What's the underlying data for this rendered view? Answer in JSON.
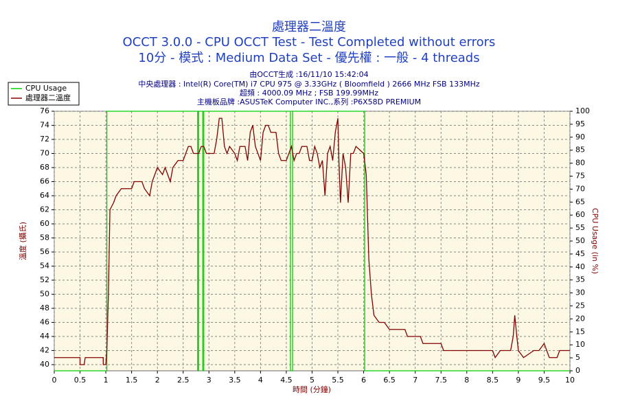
{
  "chart_data": {
    "type": "line",
    "title": "處理器二溫度",
    "subtitle": [
      "OCCT 3.0.0 - CPU OCCT Test - Test Completed without errors",
      "10分 - 模式 : Medium Data Set - 優先權 : 一般 - 4 threads"
    ],
    "notes": [
      "由OCCT生成 :16/11/10 15:42:04",
      "中央處理器 : Intel(R) Core(TM) i7 CPU 975 @ 3.33GHz ( Bloomfield ) 2666 MHz FSB 133MHz",
      "超頻 : 4000.09 MHz ; FSB 199.99MHz",
      "主機板品牌 :ASUSTeK Computer INC.,系列 :P6X58D PREMIUM"
    ],
    "xlabel": "時間 (分鐘)",
    "ylabel": "溫度 (攝氏)",
    "y2label": "CPU Usage (in %)",
    "xlim": [
      0,
      10
    ],
    "xticks": [
      0,
      0.5,
      1,
      1.5,
      2,
      2.5,
      3,
      3.5,
      4,
      4.5,
      5,
      5.5,
      6,
      6.5,
      7,
      7.5,
      8,
      8.5,
      9,
      9.5,
      10
    ],
    "ylim": [
      39.12,
      76
    ],
    "yticks": [
      40,
      42,
      44,
      46,
      48,
      50,
      52,
      54,
      56,
      58,
      60,
      62,
      64,
      66,
      68,
      70,
      72,
      74,
      76
    ],
    "y2lim": [
      0,
      100
    ],
    "y2ticks": [
      0,
      5,
      10,
      15,
      20,
      25,
      30,
      35,
      40,
      45,
      50,
      55,
      60,
      65,
      70,
      75,
      80,
      85,
      90,
      95,
      100
    ],
    "grid": true,
    "legend": "top-left",
    "series": [
      {
        "name": "CPU Usage",
        "color": "#00d000",
        "axis": "y2",
        "x": [
          0,
          1.02,
          1.02,
          2.78,
          2.78,
          2.8,
          2.8,
          2.88,
          2.88,
          2.9,
          2.9,
          4.58,
          4.58,
          4.62,
          4.62,
          6.02,
          6.02,
          10
        ],
        "values": [
          0,
          0,
          100,
          100,
          0,
          0,
          100,
          100,
          0,
          0,
          100,
          100,
          0,
          0,
          100,
          100,
          0,
          0
        ]
      },
      {
        "name": "處理器二溫度",
        "color": "#800000",
        "x": [
          0,
          0.5,
          0.5,
          0.58,
          0.6,
          0.95,
          0.95,
          1.0,
          1.02,
          1.05,
          1.08,
          1.15,
          1.2,
          1.3,
          1.5,
          1.55,
          1.7,
          1.75,
          1.85,
          1.9,
          1.95,
          2.0,
          2.1,
          2.15,
          2.2,
          2.25,
          2.3,
          2.4,
          2.5,
          2.55,
          2.6,
          2.65,
          2.7,
          2.8,
          2.85,
          2.9,
          2.95,
          3.1,
          3.15,
          3.2,
          3.25,
          3.3,
          3.35,
          3.4,
          3.5,
          3.55,
          3.6,
          3.7,
          3.75,
          3.8,
          3.85,
          3.9,
          4.0,
          4.05,
          4.1,
          4.15,
          4.2,
          4.3,
          4.35,
          4.4,
          4.5,
          4.55,
          4.6,
          4.65,
          4.7,
          4.75,
          4.8,
          4.9,
          4.95,
          5.0,
          5.05,
          5.1,
          5.15,
          5.2,
          5.25,
          5.3,
          5.35,
          5.4,
          5.45,
          5.5,
          5.52,
          5.55,
          5.6,
          5.65,
          5.7,
          5.75,
          5.8,
          5.85,
          6.0,
          6.05,
          6.1,
          6.15,
          6.2,
          6.3,
          6.4,
          6.5,
          6.8,
          6.85,
          7.1,
          7.15,
          7.5,
          7.55,
          8.5,
          8.55,
          8.65,
          8.85,
          8.9,
          8.93,
          8.97,
          9.0,
          9.1,
          9.3,
          9.4,
          9.5,
          9.55,
          9.6,
          9.75,
          9.8,
          10
        ],
        "values": [
          41,
          41,
          40,
          40,
          41,
          41,
          40,
          40,
          42,
          50,
          62,
          63,
          64,
          65,
          65,
          66,
          66,
          65,
          64,
          66,
          67,
          68,
          67,
          68,
          67,
          66,
          68,
          69,
          69,
          70,
          71,
          71,
          70,
          70,
          71,
          71,
          70,
          70,
          72,
          75,
          75,
          71,
          70,
          71,
          70,
          69,
          71,
          71,
          69,
          73,
          74,
          71,
          69,
          73,
          74,
          74,
          73,
          73,
          70,
          69,
          69,
          70,
          71,
          69,
          70,
          70,
          71,
          71,
          69,
          69,
          71,
          70,
          68,
          69,
          64,
          70,
          71,
          69,
          73,
          75,
          69,
          63,
          70,
          68,
          63,
          70,
          70,
          71,
          70,
          67,
          55,
          50,
          47,
          46,
          46,
          45,
          45,
          44,
          44,
          43,
          43,
          42,
          42,
          41,
          42,
          42,
          44,
          47,
          44,
          42,
          41,
          42,
          42,
          43,
          42,
          41,
          41,
          42,
          42
        ]
      }
    ]
  }
}
